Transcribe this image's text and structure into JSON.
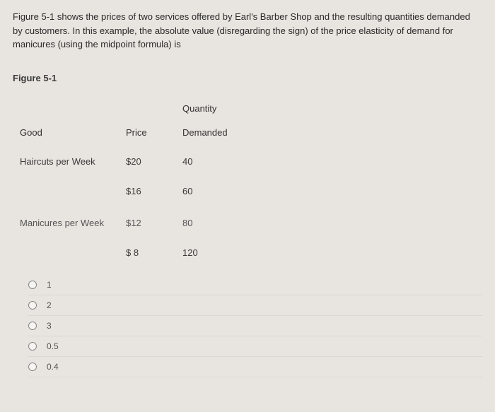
{
  "question": "Figure 5-1 shows the prices of two services offered by Earl's Barber Shop and the resulting quantities demanded by customers. In this example, the absolute value (disregarding the sign) of the price elasticity of demand for manicures (using the midpoint formula) is",
  "figure_label": "Figure 5-1",
  "table": {
    "headers": {
      "good": "Good",
      "price": "Price",
      "quantity_top": "Quantity",
      "quantity_bottom": "Demanded"
    },
    "rows": [
      {
        "good": "Haircuts per Week",
        "price": "$20",
        "qty": "40"
      },
      {
        "good": "",
        "price": "$16",
        "qty": "60"
      },
      {
        "good": "Manicures per Week",
        "price": "$12",
        "qty": "80"
      },
      {
        "good": "",
        "price": "$ 8",
        "qty": "120"
      }
    ]
  },
  "answers": [
    {
      "label": "1"
    },
    {
      "label": "2"
    },
    {
      "label": "3"
    },
    {
      "label": "0.5"
    },
    {
      "label": "0.4"
    }
  ],
  "colors": {
    "background": "#e8e4df",
    "text": "#3a3a3a",
    "row_border": "rgba(0,0,0,0.06)"
  }
}
